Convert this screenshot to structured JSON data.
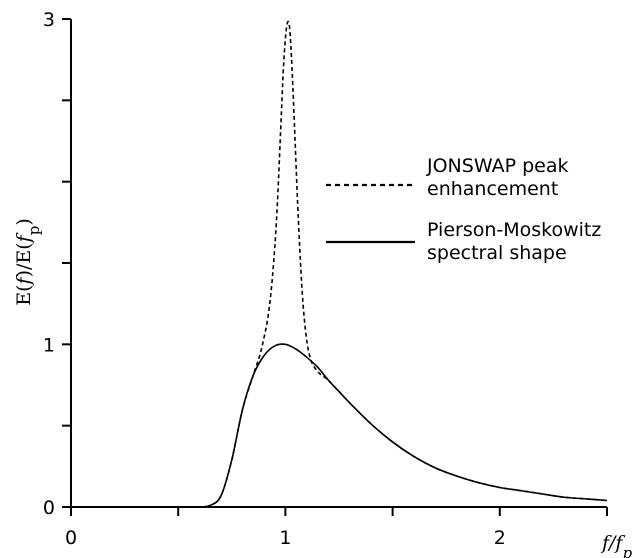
{
  "chart_data": {
    "type": "line",
    "title": "",
    "xlabel": "f/fp",
    "ylabel": "E(f)/E(fp)",
    "xlim": [
      0,
      2.5
    ],
    "ylim": [
      0,
      3
    ],
    "x_ticks": [
      0,
      0.5,
      1,
      1.5,
      2,
      2.5
    ],
    "x_tick_labels": [
      "0",
      "",
      "1",
      "",
      "2",
      ""
    ],
    "y_ticks": [
      0,
      0.5,
      1,
      1.5,
      2,
      2.5,
      3
    ],
    "y_tick_labels": [
      "0",
      "",
      "1",
      "",
      "",
      "",
      "3"
    ],
    "grid": false,
    "legend_position": "right",
    "series": [
      {
        "name": "JONSWAP peak enhancement",
        "style": "dashed",
        "color": "#000000",
        "x": [
          0.6,
          0.65,
          0.7,
          0.75,
          0.8,
          0.85,
          0.88,
          0.9,
          0.92,
          0.94,
          0.96,
          0.98,
          0.99,
          1.0,
          1.01,
          1.02,
          1.03,
          1.04,
          1.06,
          1.08,
          1.1,
          1.12,
          1.14,
          1.16,
          1.18,
          1.2,
          1.25,
          1.3,
          1.4,
          1.5,
          1.6,
          1.7,
          1.8,
          1.9,
          2.0,
          2.1,
          2.2,
          2.3,
          2.4,
          2.5
        ],
        "y": [
          0.0,
          0.01,
          0.07,
          0.29,
          0.6,
          0.81,
          0.93,
          1.04,
          1.18,
          1.42,
          1.8,
          2.38,
          2.68,
          2.88,
          2.98,
          2.94,
          2.72,
          2.42,
          1.78,
          1.29,
          1.02,
          0.9,
          0.85,
          0.82,
          0.8,
          0.78,
          0.71,
          0.64,
          0.51,
          0.4,
          0.31,
          0.24,
          0.19,
          0.15,
          0.12,
          0.1,
          0.08,
          0.06,
          0.05,
          0.04
        ]
      },
      {
        "name": "Pierson-Moskowitz spectral shape",
        "style": "solid",
        "color": "#000000",
        "x": [
          0.6,
          0.65,
          0.7,
          0.75,
          0.8,
          0.85,
          0.9,
          0.95,
          1.0,
          1.05,
          1.1,
          1.15,
          1.2,
          1.25,
          1.3,
          1.4,
          1.5,
          1.6,
          1.7,
          1.8,
          1.9,
          2.0,
          2.1,
          2.2,
          2.3,
          2.4,
          2.5
        ],
        "y": [
          0.0,
          0.01,
          0.07,
          0.29,
          0.6,
          0.81,
          0.93,
          0.99,
          1.0,
          0.97,
          0.92,
          0.86,
          0.78,
          0.71,
          0.64,
          0.51,
          0.4,
          0.31,
          0.24,
          0.19,
          0.15,
          0.12,
          0.1,
          0.08,
          0.06,
          0.05,
          0.04
        ]
      }
    ]
  }
}
